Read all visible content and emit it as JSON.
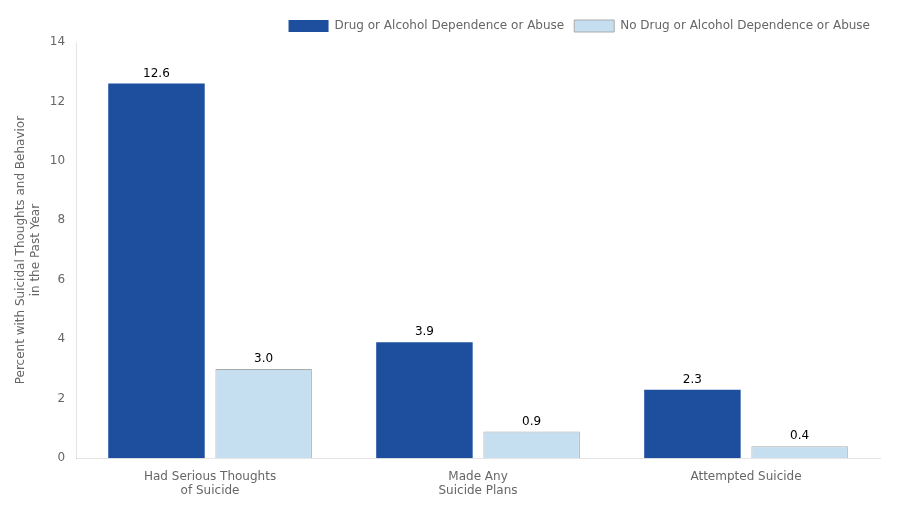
{
  "chart_data": {
    "type": "bar",
    "categories": [
      "Had Serious Thoughts\nof Suicide",
      "Made Any\nSuicide Plans",
      "Attempted Suicide"
    ],
    "series": [
      {
        "name": "Drug or Alcohol Dependence or Abuse",
        "color": "#1e4f9f",
        "values": [
          12.6,
          3.9,
          2.3
        ]
      },
      {
        "name": "No Drug or Alcohol Dependence or Abuse",
        "color": "#c5dff0",
        "values": [
          3.0,
          0.9,
          0.4
        ],
        "value_labels": [
          "3.0",
          "0.9",
          "0.4"
        ]
      }
    ],
    "ylabel": "Percent with Suicidal Thoughts and Behavior\nin the Past Year",
    "ylim": [
      0,
      14
    ],
    "yticks": [
      0,
      2,
      4,
      6,
      8,
      10,
      12,
      14
    ],
    "grid": false,
    "legend": "upper right",
    "data_labels": true
  }
}
